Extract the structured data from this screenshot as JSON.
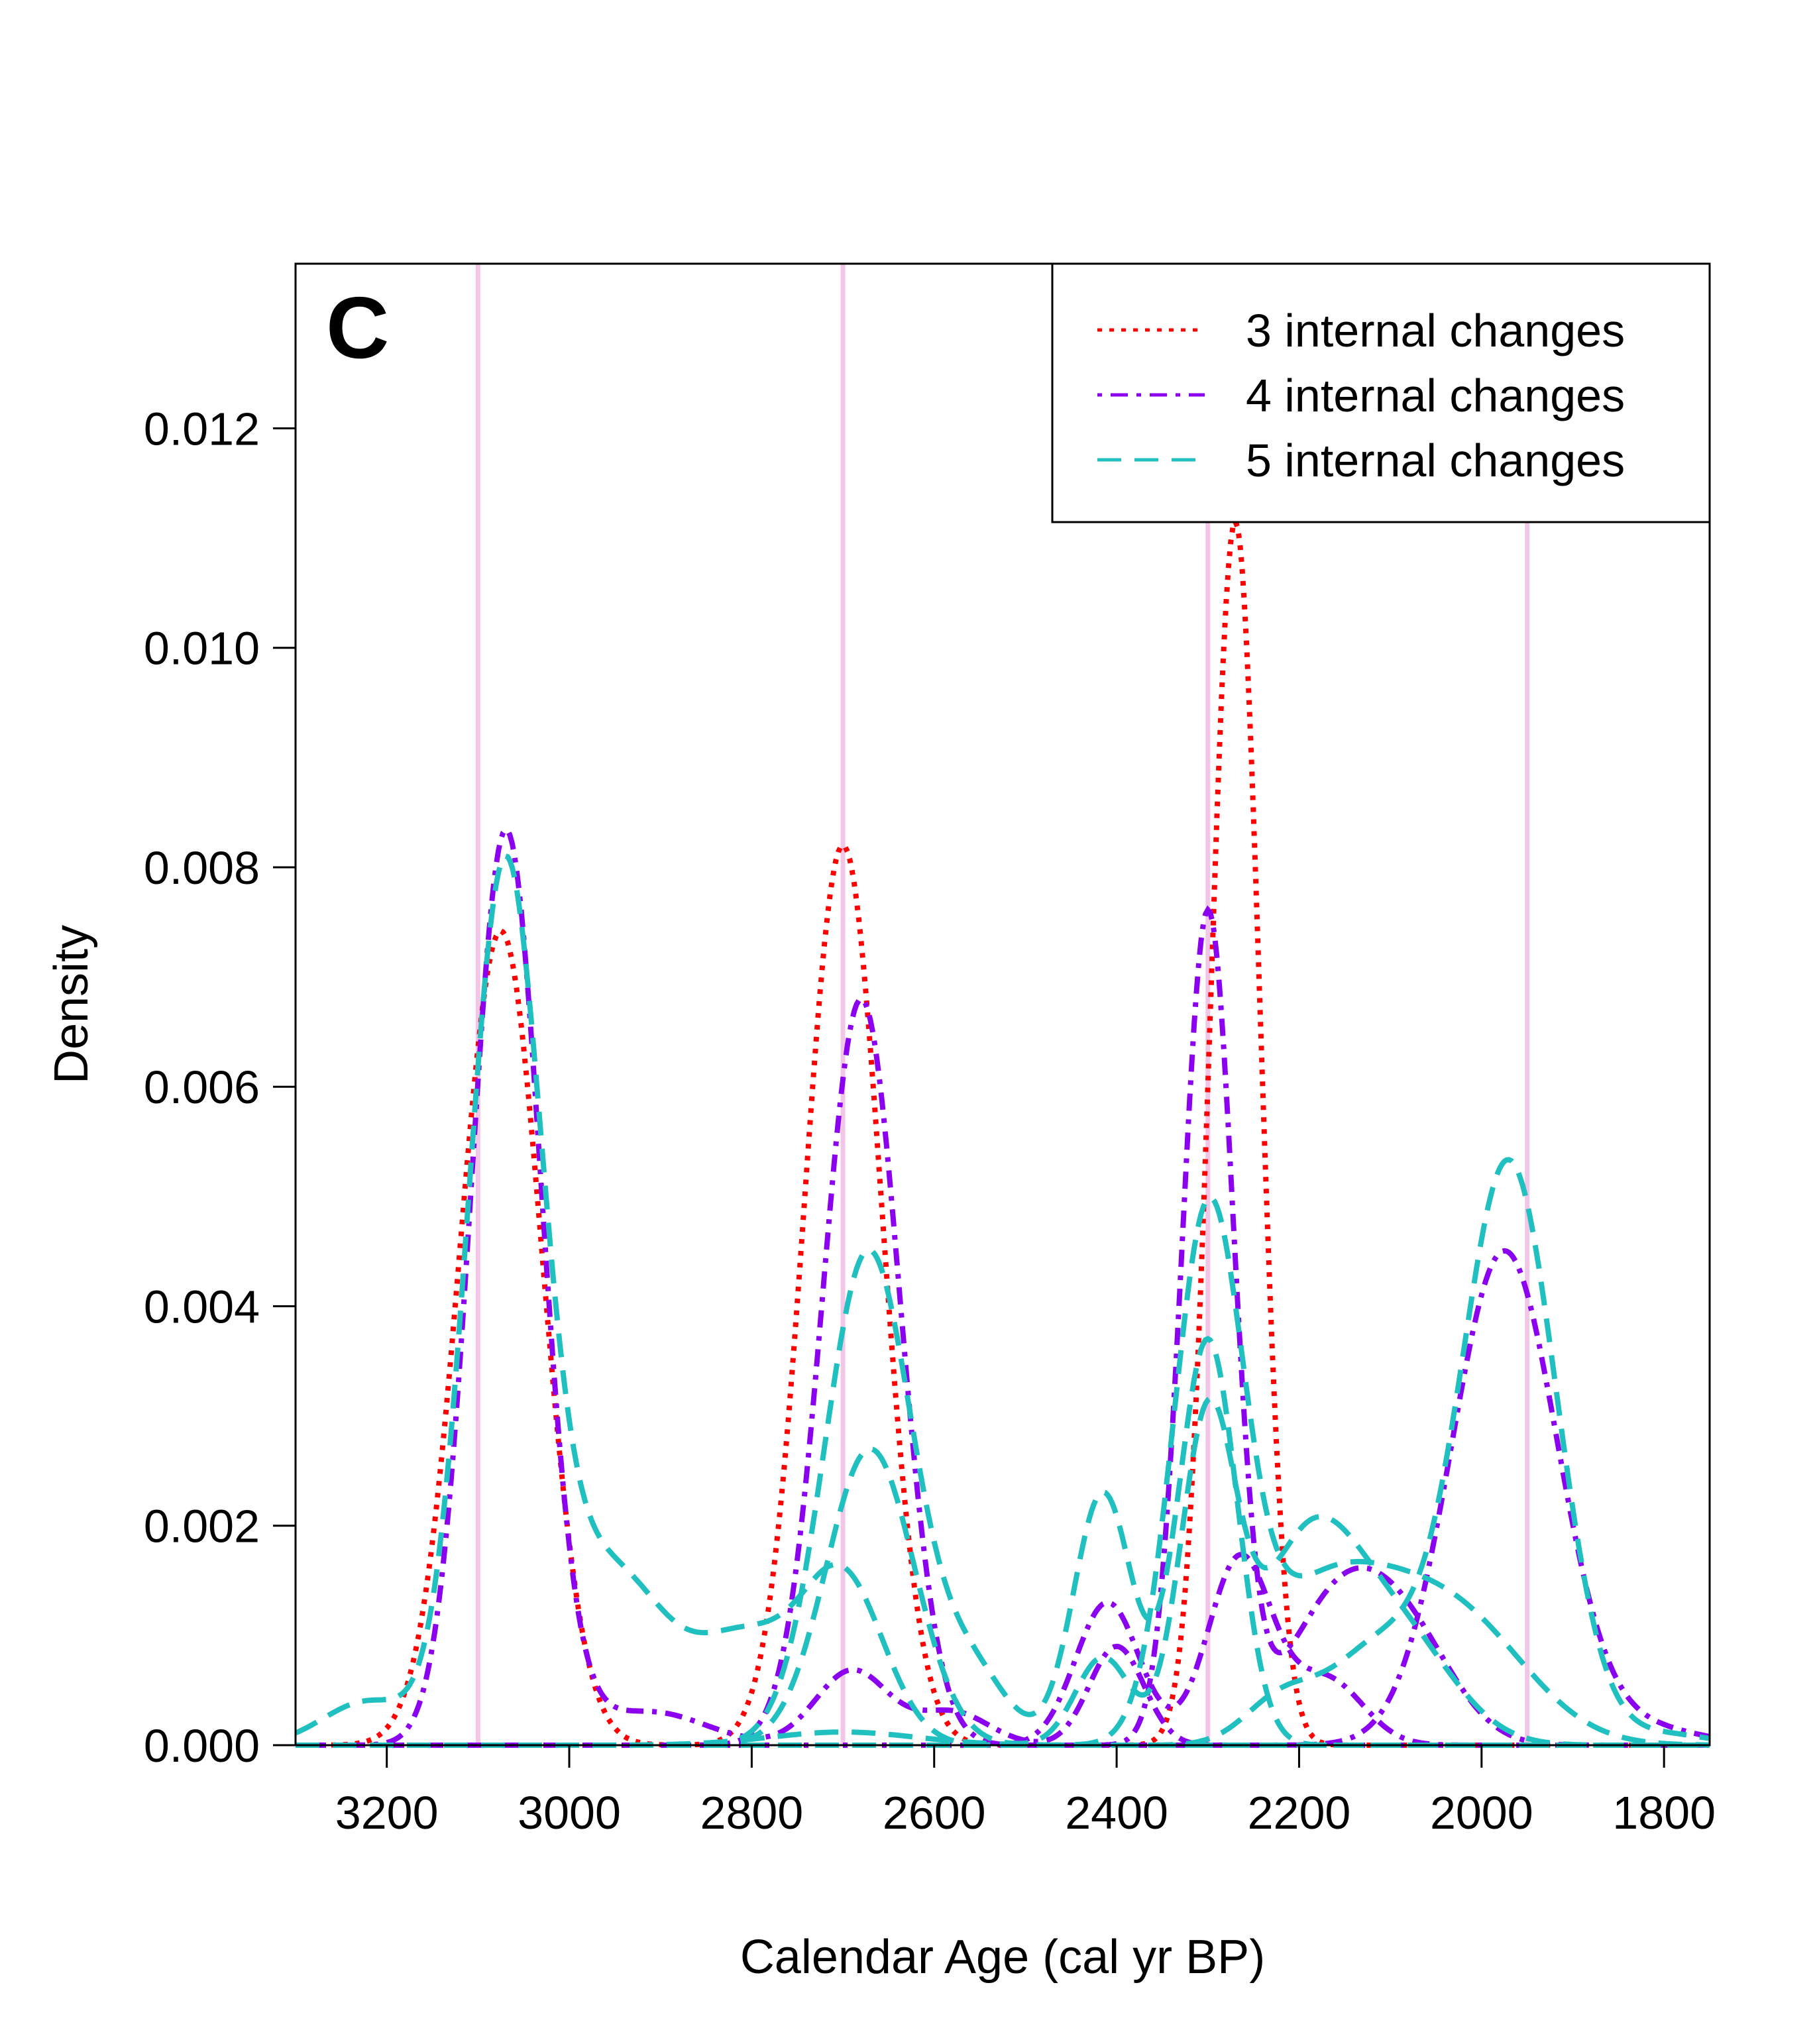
{
  "chart_data": {
    "type": "line",
    "panel_label": "C",
    "xlabel": "Calendar Age (cal yr BP)",
    "ylabel": "Density",
    "xlim": [
      3300,
      1750
    ],
    "ylim": [
      0,
      0.0135
    ],
    "x_reversed": true,
    "x_ticks": [
      3200,
      3000,
      2800,
      2600,
      2400,
      2200,
      2000,
      1800
    ],
    "x_tick_labels": [
      "3200",
      "3000",
      "2800",
      "2600",
      "2400",
      "2200",
      "2000",
      "1800"
    ],
    "y_ticks": [
      0,
      0.002,
      0.004,
      0.006,
      0.008,
      0.01,
      0.012
    ],
    "y_tick_labels": [
      "0.000",
      "0.002",
      "0.004",
      "0.006",
      "0.008",
      "0.010",
      "0.012"
    ],
    "grid": false,
    "legend_position": "top-right",
    "reference_lines": {
      "x": [
        3100,
        2700,
        2300,
        1950
      ],
      "color": "#f2c6e6"
    },
    "legend": [
      {
        "label": "3 internal changes",
        "color": "#ff0000",
        "dash": "dotted"
      },
      {
        "label": "4 internal changes",
        "color": "#8b00ee",
        "dash": "dotdash"
      },
      {
        "label": "5 internal changes",
        "color": "#20c0c0",
        "dash": "longdash"
      }
    ],
    "series": [
      {
        "group": 0,
        "peaks": [
          [
            3075,
            0.00742,
            45
          ],
          [
            2700,
            0.0082,
            42
          ],
          [
            2270,
            0.01115,
            27
          ]
        ]
      },
      {
        "group": 1,
        "peaks": [
          [
            3070,
            0.00822,
            38
          ],
          [
            3020,
            0.00025,
            40
          ],
          [
            2910,
            0.0003,
            60
          ],
          [
            2690,
            0.00068,
            40
          ],
          [
            2580,
            0.0003,
            40
          ],
          [
            2400,
            0.0009,
            30
          ]
        ]
      },
      {
        "group": 1,
        "peaks": [
          [
            2680,
            0.0068,
            42
          ],
          [
            2300,
            0.00755,
            28
          ],
          [
            2150,
            0.0014,
            60
          ],
          [
            2070,
            0.0006,
            50
          ]
        ]
      },
      {
        "group": 1,
        "peaks": [
          [
            2410,
            0.0013,
            35
          ],
          [
            2265,
            0.0017,
            35
          ],
          [
            2170,
            0.0006,
            40
          ]
        ]
      },
      {
        "group": 1,
        "peaks": [
          [
            1975,
            0.0045,
            58
          ],
          [
            1820,
            0.00015,
            60
          ]
        ]
      },
      {
        "group": 2,
        "peaks": [
          [
            3072,
            0.0076,
            40
          ],
          [
            3220,
            0.0004,
            50
          ],
          [
            3000,
            0.0011,
            55
          ],
          [
            2930,
            0.00095,
            50
          ],
          [
            2810,
            0.00095,
            55
          ],
          [
            2700,
            0.0015,
            45
          ]
        ]
      },
      {
        "group": 2,
        "peaks": [
          [
            2672,
            0.0045,
            48
          ],
          [
            2560,
            0.00065,
            40
          ],
          [
            2415,
            0.0023,
            32
          ],
          [
            2300,
            0.0037,
            32
          ]
        ]
      },
      {
        "group": 2,
        "peaks": [
          [
            2670,
            0.0027,
            48
          ],
          [
            2415,
            0.0008,
            30
          ],
          [
            2300,
            0.0029,
            30
          ],
          [
            2190,
            0.0018,
            55
          ],
          [
            2090,
            0.00095,
            60
          ]
        ]
      },
      {
        "group": 2,
        "peaks": [
          [
            2300,
            0.00465,
            38
          ],
          [
            2190,
            0.00095,
            70
          ],
          [
            2080,
            0.0011,
            90
          ],
          [
            2000,
            0.0004,
            70
          ]
        ]
      },
      {
        "group": 2,
        "peaks": [
          [
            1970,
            0.0053,
            52
          ],
          [
            2110,
            0.0009,
            55
          ],
          [
            2220,
            0.0004,
            40
          ],
          [
            1800,
            0.0001,
            50
          ]
        ]
      },
      {
        "group": 2,
        "peaks": [
          [
            2700,
            0.00012,
            80
          ],
          [
            2400,
            0.0,
            10
          ]
        ]
      }
    ]
  }
}
